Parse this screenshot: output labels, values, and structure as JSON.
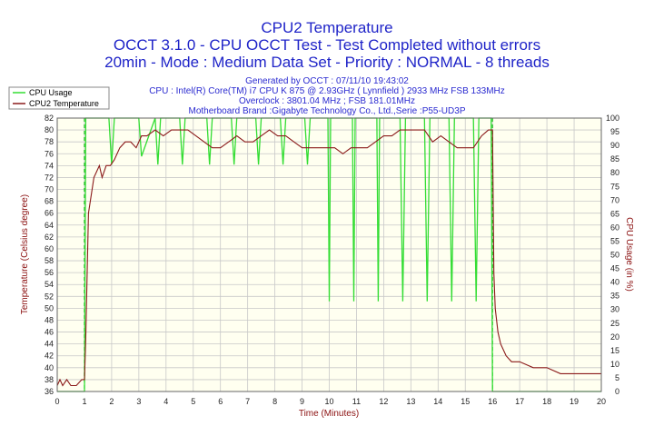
{
  "header": {
    "title": "CPU2 Temperature",
    "subtitle": "OCCT 3.1.0 - CPU OCCT Test - Test Completed without errors",
    "mode_line": "20min - Mode : Medium Data Set - Priority : NORMAL - 8 threads",
    "generated": "Generated by OCCT : 07/11/10 19:43:02",
    "cpu": "CPU : Intel(R) Core(TM) i7 CPU K 875 @ 2.93GHz ( Lynnfield ) 2933 MHz FSB 133MHz",
    "overclock": "Overclock : 3801.04 MHz ; FSB 181.01MHz",
    "motherboard": "Motherboard Brand :Gigabyte Technology Co., Ltd.,Serie :P55-UD3P"
  },
  "legend": {
    "cpu_usage": "CPU Usage",
    "cpu2_temperature": "CPU2 Temperature"
  },
  "colors": {
    "temperature": "#8b1a1a",
    "usage": "#33dd33",
    "marker": "#22bb22",
    "plot_bg": "#fffff0",
    "grid": "#c8c8c8",
    "title": "#1f24c8"
  },
  "chart_data": {
    "type": "line",
    "title": "CPU2 Temperature",
    "xlabel": "Time (Minutes)",
    "ylabel": "Temperature (Celsius degree)",
    "y2label": "CPU Usage (in %)",
    "xlim": [
      0,
      20
    ],
    "ylim": [
      36,
      82
    ],
    "y2lim": [
      0,
      100
    ],
    "x_ticks": [
      0,
      1,
      2,
      3,
      4,
      5,
      6,
      7,
      8,
      9,
      10,
      11,
      12,
      13,
      14,
      15,
      16,
      17,
      18,
      19,
      20
    ],
    "y_ticks": [
      36,
      38,
      40,
      42,
      44,
      46,
      48,
      50,
      52,
      54,
      56,
      58,
      60,
      62,
      64,
      66,
      68,
      70,
      72,
      74,
      76,
      78,
      80,
      82
    ],
    "y2_ticks": [
      0,
      5,
      10,
      15,
      20,
      25,
      30,
      35,
      40,
      45,
      50,
      55,
      60,
      65,
      70,
      75,
      80,
      85,
      90,
      95,
      100
    ],
    "grid": true,
    "legend_position": "top-left",
    "markers_x": [
      1,
      16
    ],
    "series": [
      {
        "name": "CPU2 Temperature",
        "axis": "left",
        "x": [
          0,
          0.1,
          0.2,
          0.35,
          0.5,
          0.7,
          0.9,
          1.0,
          1.05,
          1.15,
          1.25,
          1.35,
          1.45,
          1.55,
          1.65,
          1.8,
          1.95,
          2.1,
          2.3,
          2.5,
          2.7,
          2.9,
          3.1,
          3.3,
          3.6,
          3.9,
          4.2,
          4.5,
          4.8,
          5.1,
          5.4,
          5.7,
          6.0,
          6.3,
          6.6,
          6.9,
          7.2,
          7.5,
          7.8,
          8.1,
          8.4,
          8.7,
          9.0,
          9.3,
          9.6,
          9.9,
          10.2,
          10.5,
          10.8,
          11.1,
          11.4,
          11.7,
          12.0,
          12.3,
          12.6,
          12.9,
          13.2,
          13.5,
          13.8,
          14.1,
          14.4,
          14.7,
          15.0,
          15.3,
          15.6,
          15.85,
          15.95,
          16.0,
          16.05,
          16.1,
          16.2,
          16.3,
          16.5,
          16.7,
          17.0,
          17.5,
          18.0,
          18.5,
          19.0,
          19.5,
          20.0
        ],
        "y": [
          37,
          38,
          37,
          38,
          37,
          37,
          38,
          38,
          45,
          66,
          69,
          72,
          73,
          74,
          72,
          74,
          74,
          75,
          77,
          78,
          78,
          77,
          79,
          79,
          80,
          79,
          80,
          80,
          80,
          79,
          78,
          77,
          77,
          78,
          79,
          78,
          78,
          79,
          80,
          79,
          79,
          78,
          77,
          77,
          77,
          77,
          77,
          76,
          77,
          77,
          77,
          78,
          79,
          79,
          80,
          80,
          80,
          80,
          78,
          79,
          78,
          77,
          77,
          77,
          79,
          80,
          80,
          80,
          56,
          50,
          46,
          44,
          42,
          41,
          41,
          40,
          40,
          39,
          39,
          39,
          39
        ]
      },
      {
        "name": "CPU Usage",
        "axis": "right",
        "x": [
          0,
          0.9,
          1.0,
          1.05,
          1.1,
          1.5,
          1.9,
          2.0,
          2.1,
          2.2,
          2.6,
          3.0,
          3.1,
          3.6,
          3.7,
          3.8,
          4.5,
          4.6,
          4.7,
          5.5,
          5.6,
          5.7,
          6.4,
          6.5,
          6.6,
          7.3,
          7.4,
          7.5,
          8.2,
          8.3,
          8.4,
          9.1,
          9.2,
          9.3,
          9.95,
          10.0,
          10.05,
          10.85,
          10.9,
          10.95,
          11.75,
          11.8,
          11.85,
          12.6,
          12.7,
          12.8,
          13.5,
          13.6,
          13.7,
          14.4,
          14.5,
          14.6,
          15.3,
          15.4,
          15.5,
          15.95,
          16.0,
          16.05,
          20.0
        ],
        "y": [
          0,
          0,
          0,
          100,
          100,
          100,
          100,
          83,
          100,
          100,
          100,
          100,
          86,
          100,
          83,
          100,
          100,
          83,
          100,
          100,
          83,
          100,
          100,
          83,
          100,
          100,
          83,
          100,
          100,
          83,
          100,
          100,
          83,
          100,
          100,
          33,
          100,
          100,
          33,
          100,
          100,
          33,
          100,
          100,
          33,
          100,
          100,
          33,
          100,
          100,
          33,
          100,
          100,
          33,
          100,
          100,
          0,
          0,
          0
        ]
      }
    ]
  }
}
